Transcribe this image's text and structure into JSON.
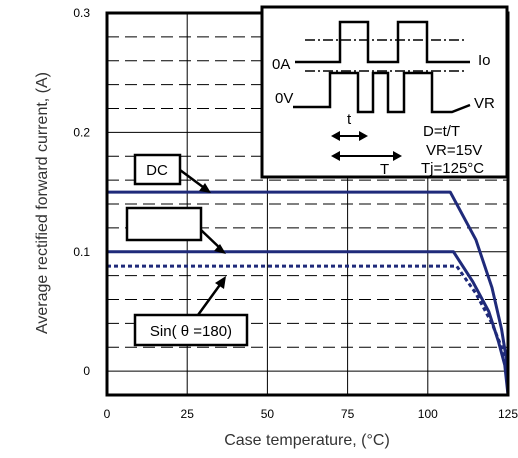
{
  "chart_data": {
    "type": "line",
    "xlabel": "Case temperature, (°C)",
    "ylabel": "Average rectified forward current, (A)",
    "xlim": [
      0,
      125
    ],
    "ylim": [
      -0.02,
      0.3
    ],
    "x_ticks": [
      "0",
      "25",
      "50",
      "75",
      "100",
      "125"
    ],
    "y_ticks": [
      "0",
      "0.1",
      "0.2",
      "0.3"
    ],
    "grid": true,
    "series": [
      {
        "name": "DC",
        "style": "solid",
        "x": [
          0,
          107,
          115,
          120,
          123,
          124.5,
          125
        ],
        "y": [
          0.15,
          0.15,
          0.11,
          0.07,
          0.035,
          0.01,
          -0.02
        ]
      },
      {
        "name": "",
        "style": "solid",
        "x": [
          0,
          108,
          114,
          119,
          122,
          124,
          125
        ],
        "y": [
          0.1,
          0.1,
          0.075,
          0.05,
          0.025,
          0.005,
          -0.02
        ]
      },
      {
        "name": "Sin( θ =180)",
        "style": "dotted",
        "x": [
          0,
          109,
          115,
          120,
          123,
          124.5,
          125
        ],
        "y": [
          0.088,
          0.088,
          0.065,
          0.04,
          0.02,
          0.003,
          -0.02
        ]
      }
    ],
    "annotations": {
      "callout_dc": "DC",
      "callout_empty": "",
      "callout_sin": "Sin( θ =180)"
    },
    "inset": {
      "io_label": "Io",
      "zero_a": "0A",
      "zero_v": "0V",
      "vr_label": "VR",
      "t_label": "t",
      "period_label": "T",
      "duty": "D=t/T",
      "vr_value": "VR=15V",
      "tj_value": "Tj=125°C"
    }
  },
  "colors": {
    "series": "#1f2a7a",
    "frame": "#000000",
    "grid": "#000000"
  }
}
